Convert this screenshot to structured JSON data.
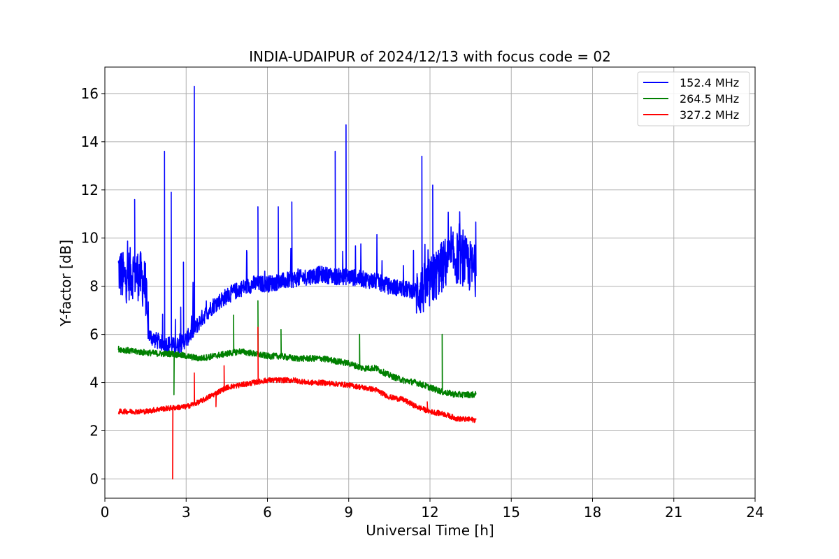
{
  "chart_data": {
    "type": "line",
    "title": "INDIA-UDAIPUR of 2024/12/13 with focus code = 02",
    "xlabel": "Universal Time [h]",
    "ylabel": "Y-factor [dB]",
    "xlim": [
      0,
      24
    ],
    "ylim": [
      -0.8,
      17.1
    ],
    "x_ticks": [
      0,
      3,
      6,
      9,
      12,
      15,
      18,
      21,
      24
    ],
    "y_ticks": [
      0,
      2,
      4,
      6,
      8,
      10,
      12,
      14,
      16
    ],
    "grid": true,
    "legend_position": "top-right",
    "series": [
      {
        "name": "152.4 MHz",
        "color": "#0000ff",
        "x": [
          0.5,
          0.7,
          0.9,
          1.1,
          1.3,
          1.5,
          1.6,
          1.8,
          2.0,
          2.2,
          2.4,
          2.6,
          2.8,
          3.0,
          3.3,
          3.6,
          4.0,
          4.5,
          5.0,
          5.5,
          6.0,
          6.5,
          7.0,
          7.5,
          8.0,
          8.5,
          9.0,
          9.5,
          10.0,
          10.5,
          11.0,
          11.5,
          11.8,
          12.0,
          12.3,
          12.6,
          12.9,
          13.2,
          13.5,
          13.7
        ],
        "y": [
          8.7,
          8.3,
          8.5,
          8.6,
          8.4,
          8.0,
          6.0,
          5.8,
          5.7,
          5.6,
          5.6,
          5.5,
          5.6,
          5.8,
          6.2,
          6.7,
          7.2,
          7.6,
          7.9,
          8.1,
          8.1,
          8.2,
          8.3,
          8.4,
          8.5,
          8.4,
          8.4,
          8.3,
          8.2,
          8.0,
          7.9,
          7.8,
          7.9,
          8.1,
          8.6,
          9.0,
          9.2,
          9.1,
          8.8,
          8.6
        ],
        "spikes": [
          [
            1.1,
            11.6
          ],
          [
            2.2,
            13.6
          ],
          [
            2.45,
            11.9
          ],
          [
            2.9,
            9.0
          ],
          [
            3.3,
            16.3
          ],
          [
            5.65,
            11.3
          ],
          [
            6.4,
            11.3
          ],
          [
            6.9,
            11.5
          ],
          [
            8.5,
            13.6
          ],
          [
            8.9,
            14.7
          ],
          [
            11.7,
            13.4
          ],
          [
            12.1,
            12.2
          ]
        ]
      },
      {
        "name": "264.5 MHz",
        "color": "#008000",
        "x": [
          0.5,
          1.0,
          1.5,
          2.0,
          2.5,
          3.0,
          3.5,
          4.0,
          4.5,
          5.0,
          5.5,
          6.0,
          6.5,
          7.0,
          7.5,
          8.0,
          8.5,
          9.0,
          9.5,
          10.0,
          10.5,
          11.0,
          11.5,
          12.0,
          12.5,
          13.0,
          13.7
        ],
        "y": [
          5.4,
          5.3,
          5.25,
          5.2,
          5.2,
          5.1,
          5.0,
          5.1,
          5.2,
          5.3,
          5.2,
          5.1,
          5.1,
          5.0,
          5.0,
          5.0,
          4.9,
          4.8,
          4.6,
          4.6,
          4.3,
          4.1,
          4.0,
          3.8,
          3.6,
          3.5,
          3.5
        ],
        "spikes": [
          [
            2.55,
            3.5
          ],
          [
            4.75,
            6.8
          ],
          [
            5.65,
            7.4
          ],
          [
            6.5,
            6.2
          ],
          [
            9.4,
            6.0
          ],
          [
            12.45,
            6.0
          ]
        ]
      },
      {
        "name": "327.2 MHz",
        "color": "#ff0000",
        "x": [
          0.5,
          1.0,
          1.5,
          2.0,
          2.5,
          3.0,
          3.5,
          4.0,
          4.5,
          5.0,
          5.5,
          6.0,
          6.5,
          7.0,
          7.5,
          8.0,
          8.5,
          9.0,
          9.5,
          10.0,
          10.5,
          11.0,
          11.5,
          12.0,
          12.5,
          13.0,
          13.7
        ],
        "y": [
          2.8,
          2.8,
          2.8,
          2.9,
          2.95,
          3.0,
          3.2,
          3.5,
          3.8,
          3.9,
          4.0,
          4.1,
          4.1,
          4.1,
          4.0,
          4.0,
          3.95,
          3.9,
          3.8,
          3.7,
          3.4,
          3.3,
          3.0,
          2.8,
          2.7,
          2.5,
          2.45
        ],
        "spikes": [
          [
            2.5,
            0.0
          ],
          [
            3.3,
            4.4
          ],
          [
            4.1,
            3.0
          ],
          [
            4.4,
            4.7
          ],
          [
            5.65,
            6.3
          ],
          [
            11.9,
            3.2
          ]
        ]
      }
    ]
  }
}
